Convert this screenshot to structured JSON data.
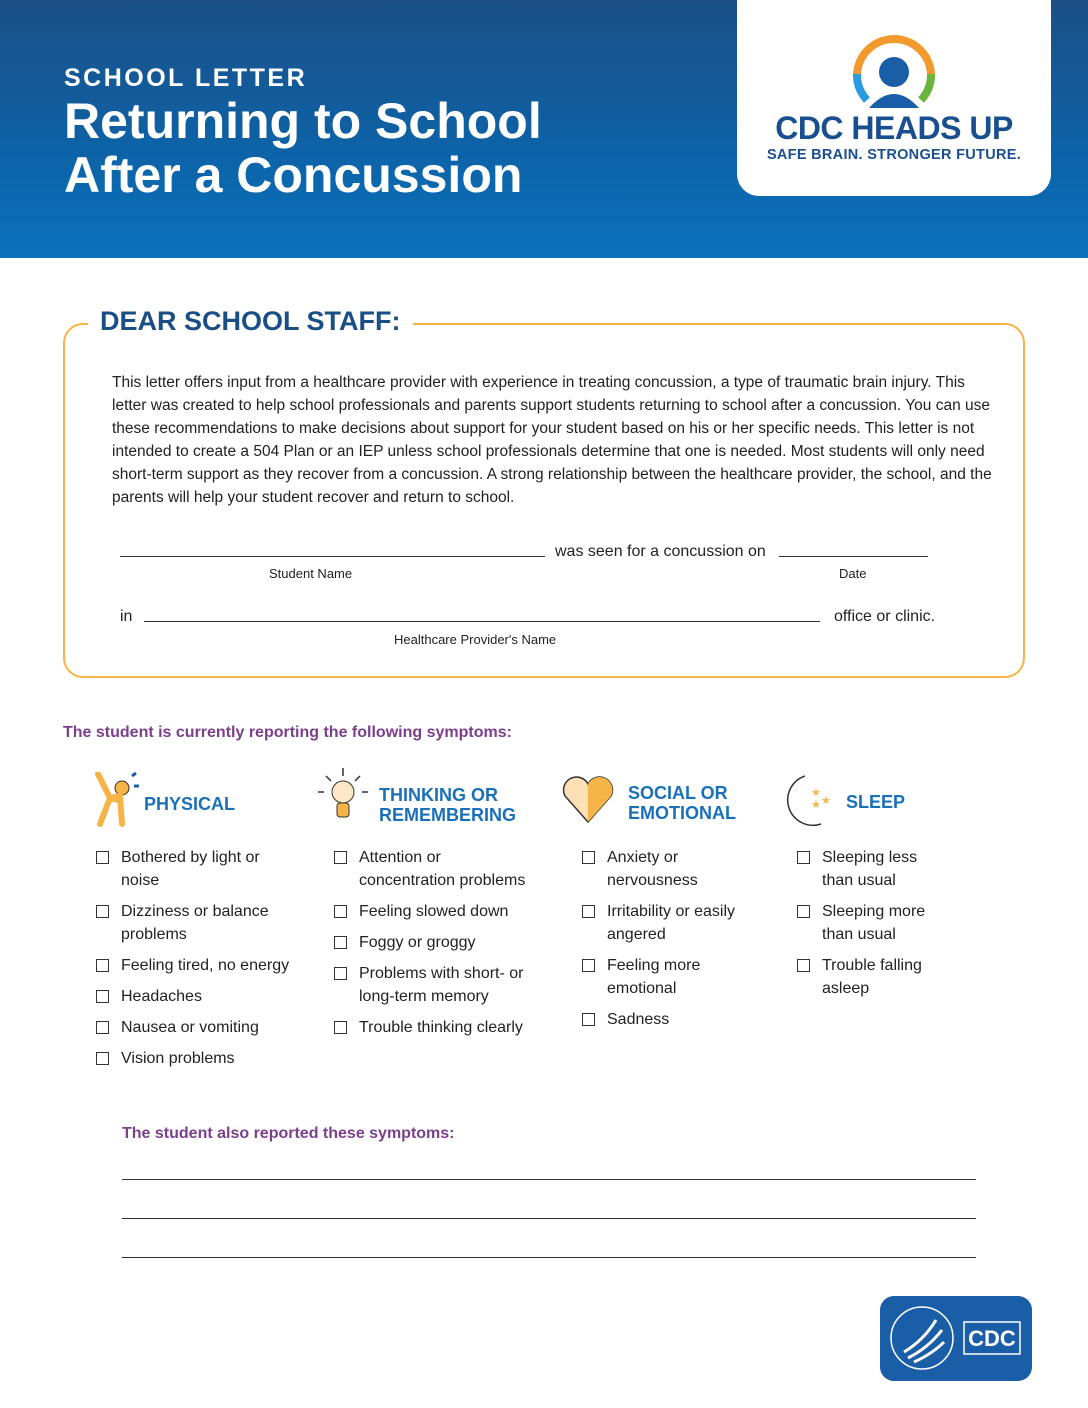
{
  "header": {
    "eyebrow": "SCHOOL LETTER",
    "title_line1": "Returning to School",
    "title_line2": "After a Concussion"
  },
  "logo": {
    "name": "CDC HEADS UP",
    "tagline": "SAFE BRAIN. STRONGER FUTURE."
  },
  "letter": {
    "heading": "DEAR SCHOOL STAFF:",
    "body": "This letter offers input from a healthcare provider with experience in treating concussion, a type of traumatic brain injury. This letter was created to help school professionals and parents support students returning to school after a concussion. You can use these recommendations to make decisions about support for your student based on his or her specific needs. This letter is not intended to create a 504 Plan or an IEP unless school professionals determine that one is needed. Most students will only need short-term support as they recover from a concussion. A strong relationship between the healthcare provider, the school, and the parents will help your student recover and return to school.",
    "seen_text": "was seen for a concussion on",
    "student_name_label": "Student Name",
    "date_label": "Date",
    "in_text": "in",
    "office_text": "office or clinic.",
    "provider_label": "Healthcare Provider's Name"
  },
  "symptoms": {
    "heading": "The student is currently reporting the following symptoms:",
    "categories": [
      {
        "title1": "PHYSICAL",
        "title2": "",
        "items": [
          "Bothered by light or noise",
          "Dizziness or balance problems",
          "Feeling tired, no energy",
          "Headaches",
          "Nausea or vomiting",
          "Vision problems"
        ]
      },
      {
        "title1": "THINKING OR",
        "title2": "REMEMBERING",
        "items": [
          "Attention or concentration problems",
          "Feeling slowed down",
          "Foggy or groggy",
          "Problems with short- or long-term memory",
          "Trouble thinking clearly"
        ]
      },
      {
        "title1": "SOCIAL OR",
        "title2": "EMOTIONAL",
        "items": [
          "Anxiety or nervousness",
          "Irritability or easily angered",
          "Feeling more emotional",
          "Sadness"
        ]
      },
      {
        "title1": "SLEEP",
        "title2": "",
        "items": [
          "Sleeping less than usual",
          "Sleeping more than usual",
          "Trouble falling asleep"
        ]
      }
    ]
  },
  "also": {
    "heading": "The student also reported these symptoms:"
  },
  "footer_logo": {
    "text": "CDC"
  }
}
